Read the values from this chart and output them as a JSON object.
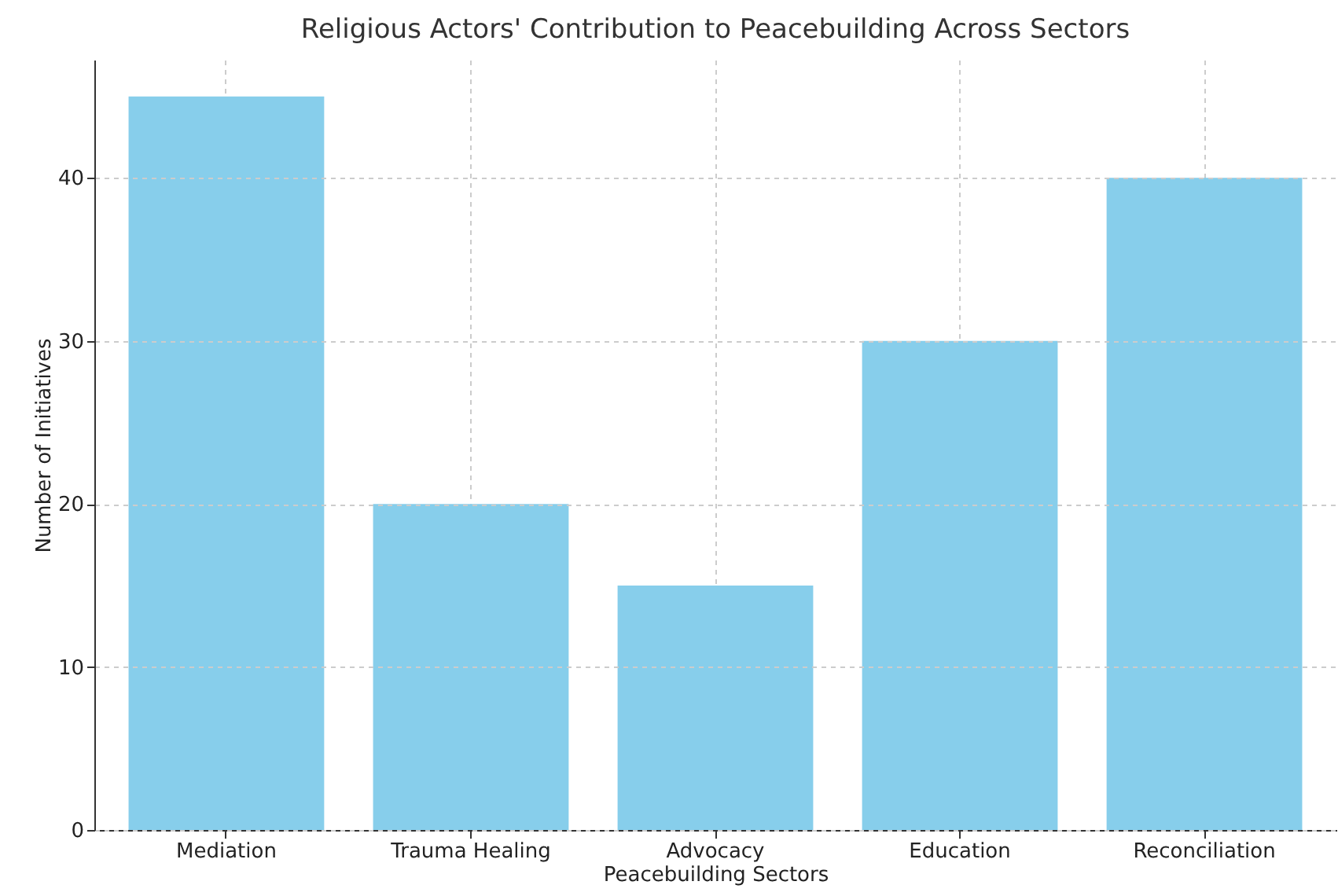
{
  "chart_data": {
    "type": "bar",
    "title": "Religious Actors' Contribution to Peacebuilding Across Sectors",
    "xlabel": "Peacebuilding Sectors",
    "ylabel": "Number of Initiatives",
    "categories": [
      "Mediation",
      "Trauma Healing",
      "Advocacy",
      "Education",
      "Reconciliation"
    ],
    "values": [
      45,
      20,
      15,
      30,
      40
    ],
    "color": "#87ceeb",
    "ylim": [
      0,
      47.25
    ],
    "yticks": [
      0,
      10,
      20,
      30,
      40
    ],
    "grid": true
  }
}
